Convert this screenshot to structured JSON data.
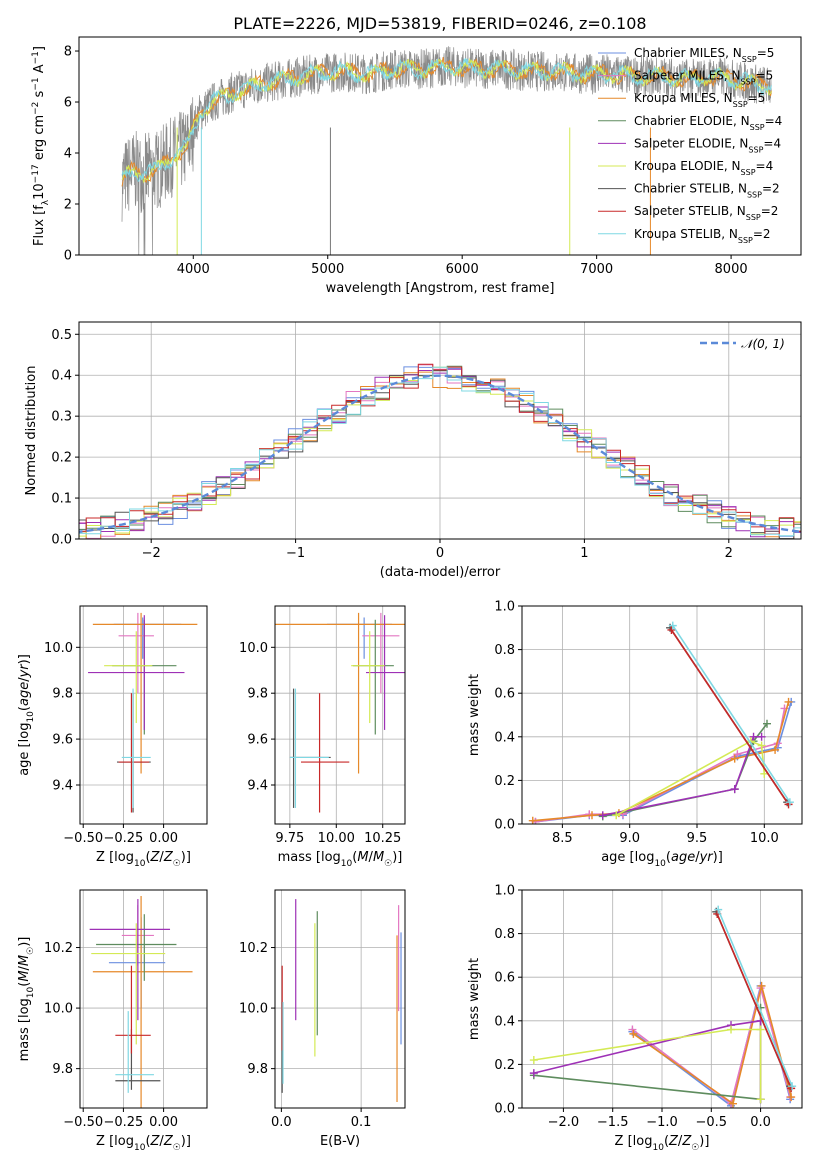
{
  "title": "PLATE=2226, MJD=53819, FIBERID=0246, z=0.108",
  "colors": [
    "#6b8fe0",
    "#e377c2",
    "#e6892a",
    "#5e8c5e",
    "#9e31b6",
    "#d4ea55",
    "#555555",
    "#c82828",
    "#7fd8e3"
  ],
  "chart_data": [
    {
      "id": "spectrum",
      "type": "line",
      "xlabel": "wavelength [Angstrom, rest frame]",
      "ylabel": "Flux [f_λ10^-17 erg cm^-2 s^-1 A^-1]",
      "xlim": [
        3150,
        8520
      ],
      "ylim": [
        0,
        8.55
      ],
      "xticks": [
        4000,
        5000,
        6000,
        7000,
        8000
      ],
      "yticks": [
        0,
        2,
        4,
        6,
        8
      ],
      "series": [
        {
          "name": "Chabrier MILES, N_SSP=5"
        },
        {
          "name": "Salpeter MILES, N_SSP=5"
        },
        {
          "name": "Kroupa MILES, N_SSP=5"
        },
        {
          "name": "Chabrier ELODIE, N_SSP=4"
        },
        {
          "name": "Salpeter ELODIE, N_SSP=4"
        },
        {
          "name": "Kroupa ELODIE, N_SSP=4"
        },
        {
          "name": "Chabrier STELIB, N_SSP=2"
        },
        {
          "name": "Salpeter STELIB, N_SSP=2"
        },
        {
          "name": "Kroupa STELIB, N_SSP=2"
        }
      ],
      "model_continuum": {
        "x": [
          3470,
          3550,
          3650,
          3750,
          3850,
          3950,
          4050,
          4150,
          4300,
          4500,
          4700,
          4900,
          5100,
          5300,
          5500,
          5700,
          5900,
          6100,
          6300,
          6500,
          6700,
          6900,
          7100,
          7300,
          7500,
          7700,
          7900,
          8100,
          8300
        ],
        "y": [
          2.9,
          3.3,
          3.2,
          3.4,
          3.9,
          4.2,
          5.6,
          6.0,
          6.4,
          6.7,
          6.9,
          7.1,
          7.2,
          7.1,
          7.3,
          7.3,
          7.4,
          7.3,
          7.3,
          7.2,
          7.2,
          7.1,
          7.1,
          7.0,
          7.0,
          6.9,
          7.0,
          6.8,
          6.6
        ]
      }
    },
    {
      "id": "residuals",
      "type": "histogram",
      "xlabel": "(data-model)/error",
      "ylabel": "Normed distribution",
      "xlim": [
        -2.5,
        2.5
      ],
      "ylim": [
        0,
        0.53
      ],
      "xticks": [
        -2,
        -1,
        0,
        1,
        2
      ],
      "yticks": [
        0.0,
        0.1,
        0.2,
        0.3,
        0.4,
        0.5
      ],
      "bin_width": 0.1,
      "reference": {
        "name": "𝒩(0, 1)",
        "type": "gaussian",
        "mean": 0,
        "sigma": 1
      }
    },
    {
      "id": "age-vs-Z",
      "type": "errorbar",
      "xlabel": "Z [log10(Z/Z☉)]",
      "ylabel": "age [log10(age/yr)]",
      "xlim": [
        -0.52,
        0.27
      ],
      "ylim": [
        9.23,
        10.18
      ],
      "xticks": [
        -0.5,
        -0.25,
        0.0
      ],
      "xtick_labels": [
        "−0.50",
        "−0.25",
        "0.00"
      ],
      "yticks": [
        9.4,
        9.6,
        9.8,
        10.0
      ],
      "points": [
        {
          "x": -0.13,
          "xerr": [
            0.18,
            0.24
          ],
          "y": 10.1,
          "yerr": [
            0.15,
            0.03
          ]
        },
        {
          "x": -0.16,
          "xerr": [
            0.12,
            0.1
          ],
          "y": 10.05,
          "yerr": [
            0.25,
            0.1
          ]
        },
        {
          "x": -0.14,
          "xerr": [
            0.3,
            0.35
          ],
          "y": 10.1,
          "yerr": [
            0.65,
            0.05
          ]
        },
        {
          "x": -0.12,
          "xerr": [
            0.2,
            0.2
          ],
          "y": 9.92,
          "yerr": [
            0.3,
            0.2
          ]
        },
        {
          "x": -0.12,
          "xerr": [
            0.35,
            0.25
          ],
          "y": 9.89,
          "yerr": [
            0.25,
            0.25
          ]
        },
        {
          "x": -0.17,
          "xerr": [
            0.2,
            0.1
          ],
          "y": 9.92,
          "yerr": [
            0.25,
            0.15
          ]
        },
        {
          "x": -0.19,
          "xerr": [
            0.1,
            0.11
          ],
          "y": 9.5,
          "yerr": [
            0.22,
            0.3
          ]
        },
        {
          "x": -0.2,
          "xerr": [
            0.08,
            0.11
          ],
          "y": 9.5,
          "yerr": [
            0.22,
            0.3
          ]
        },
        {
          "x": -0.19,
          "xerr": [
            0.07,
            0.11
          ],
          "y": 9.52,
          "yerr": [
            0.22,
            0.3
          ]
        }
      ]
    },
    {
      "id": "age-vs-mass",
      "type": "errorbar",
      "xlabel": "mass [log10(M/M☉)]",
      "ylabel": "",
      "xlim": [
        9.67,
        10.37
      ],
      "ylim": [
        9.23,
        10.18
      ],
      "xticks": [
        9.75,
        10.0,
        10.25
      ],
      "xtick_labels": [
        "9.75",
        "10.00",
        "10.25"
      ],
      "yticks": [
        9.4,
        9.6,
        9.8,
        10.0
      ],
      "points": [
        {
          "x": 10.15,
          "xerr": [
            0.2,
            0.15
          ],
          "y": 10.1,
          "yerr": [
            0.15,
            0.03
          ]
        },
        {
          "x": 10.24,
          "xerr": [
            0.1,
            0.1
          ],
          "y": 10.05,
          "yerr": [
            0.25,
            0.1
          ]
        },
        {
          "x": 10.12,
          "xerr": [
            0.45,
            0.25
          ],
          "y": 10.1,
          "yerr": [
            0.65,
            0.05
          ]
        },
        {
          "x": 10.21,
          "xerr": [
            0.12,
            0.1
          ],
          "y": 9.92,
          "yerr": [
            0.3,
            0.2
          ]
        },
        {
          "x": 10.26,
          "xerr": [
            0.1,
            0.12
          ],
          "y": 9.89,
          "yerr": [
            0.25,
            0.25
          ]
        },
        {
          "x": 10.18,
          "xerr": [
            0.1,
            0.08
          ],
          "y": 9.92,
          "yerr": [
            0.25,
            0.15
          ]
        },
        {
          "x": 9.77,
          "xerr": [
            0.02,
            0.2
          ],
          "y": 9.52,
          "yerr": [
            0.22,
            0.3
          ]
        },
        {
          "x": 9.91,
          "xerr": [
            0.1,
            0.16
          ],
          "y": 9.5,
          "yerr": [
            0.22,
            0.3
          ]
        },
        {
          "x": 9.78,
          "xerr": [
            0.03,
            0.18
          ],
          "y": 9.52,
          "yerr": [
            0.22,
            0.3
          ]
        }
      ]
    },
    {
      "id": "weight-vs-age",
      "type": "line",
      "xlabel": "age [log10(age/yr)]",
      "ylabel": "mass weight",
      "xlim": [
        8.2,
        10.28
      ],
      "ylim": [
        0,
        1
      ],
      "xticks": [
        8.5,
        9.0,
        9.5,
        10.0
      ],
      "xtick_labels": [
        "8.5",
        "9.0",
        "9.5",
        "10.0"
      ],
      "yticks": [
        0.0,
        0.2,
        0.4,
        0.6,
        0.8,
        1.0
      ],
      "series": [
        {
          "x": [
            8.3,
            8.7,
            8.95,
            9.8,
            10.1,
            10.2
          ],
          "y": [
            0.01,
            0.04,
            0.04,
            0.31,
            0.35,
            0.56
          ]
        },
        {
          "x": [
            8.3,
            8.7,
            8.95,
            9.8,
            10.1,
            10.15
          ],
          "y": [
            0.01,
            0.045,
            0.045,
            0.32,
            0.37,
            0.53
          ]
        },
        {
          "x": [
            8.28,
            8.72,
            8.92,
            9.78,
            10.08,
            10.18
          ],
          "y": [
            0.015,
            0.04,
            0.05,
            0.3,
            0.34,
            0.56
          ]
        },
        {
          "x": [
            8.8,
            9.78,
            9.92,
            10.02
          ],
          "y": [
            0.035,
            0.16,
            0.38,
            0.46
          ]
        },
        {
          "x": [
            8.8,
            9.78,
            9.92,
            9.98
          ],
          "y": [
            0.04,
            0.16,
            0.4,
            0.4
          ]
        },
        {
          "x": [
            8.9,
            9.9,
            9.98,
            10.0
          ],
          "y": [
            0.04,
            0.38,
            0.36,
            0.23
          ]
        },
        {
          "x": [
            9.3,
            10.17
          ],
          "y": [
            0.9,
            0.1
          ]
        },
        {
          "x": [
            9.31,
            10.18
          ],
          "y": [
            0.89,
            0.09
          ]
        },
        {
          "x": [
            9.32,
            10.19
          ],
          "y": [
            0.91,
            0.1
          ]
        }
      ]
    },
    {
      "id": "mass-vs-Z",
      "type": "errorbar",
      "xlabel": "Z [log10(Z/Z☉)]",
      "ylabel": "mass [log10(M/M☉)]",
      "xlim": [
        -0.52,
        0.27
      ],
      "ylim": [
        9.67,
        10.39
      ],
      "xticks": [
        -0.5,
        -0.25,
        0.0
      ],
      "xtick_labels": [
        "−0.50",
        "−0.25",
        "0.00"
      ],
      "yticks": [
        9.8,
        10.0,
        10.2
      ],
      "points": [
        {
          "x": -0.14,
          "xerr": [
            0.2,
            0.15
          ],
          "y": 10.15,
          "yerr": [
            0.15,
            0.15
          ]
        },
        {
          "x": -0.16,
          "xerr": [
            0.1,
            0.1
          ],
          "y": 10.24,
          "yerr": [
            0.1,
            0.1
          ]
        },
        {
          "x": -0.14,
          "xerr": [
            0.3,
            0.32
          ],
          "y": 10.12,
          "yerr": [
            0.45,
            0.25
          ]
        },
        {
          "x": -0.12,
          "xerr": [
            0.3,
            0.2
          ],
          "y": 10.21,
          "yerr": [
            0.12,
            0.1
          ]
        },
        {
          "x": -0.16,
          "xerr": [
            0.3,
            0.2
          ],
          "y": 10.26,
          "yerr": [
            0.3,
            0.1
          ]
        },
        {
          "x": -0.17,
          "xerr": [
            0.28,
            0.18
          ],
          "y": 10.18,
          "yerr": [
            0.3,
            0.1
          ]
        },
        {
          "x": -0.2,
          "xerr": [
            0.1,
            0.18
          ],
          "y": 9.76,
          "yerr": [
            0.03,
            0.17
          ]
        },
        {
          "x": -0.2,
          "xerr": [
            0.1,
            0.12
          ],
          "y": 9.91,
          "yerr": [
            0.06,
            0.23
          ]
        },
        {
          "x": -0.22,
          "xerr": [
            0.08,
            0.16
          ],
          "y": 9.78,
          "yerr": [
            0.06,
            0.21
          ]
        }
      ]
    },
    {
      "id": "mass-vs-EBV",
      "type": "errorbar",
      "xlabel": "E(B-V)",
      "ylabel": "",
      "xlim": [
        -0.008,
        0.155
      ],
      "ylim": [
        9.67,
        10.39
      ],
      "xticks": [
        0.0,
        0.1
      ],
      "xtick_labels": [
        "0.0",
        "0.1"
      ],
      "yticks": [
        9.8,
        10.0,
        10.2
      ],
      "points": [
        {
          "x": 0.15,
          "y": 10.15,
          "yerr": [
            0.27,
            0.1
          ]
        },
        {
          "x": 0.147,
          "y": 10.24,
          "yerr": [
            0.25,
            0.1
          ]
        },
        {
          "x": 0.145,
          "y": 10.12,
          "yerr": [
            0.43,
            0.12
          ]
        },
        {
          "x": 0.045,
          "y": 10.21,
          "yerr": [
            0.3,
            0.11
          ]
        },
        {
          "x": 0.018,
          "y": 10.26,
          "yerr": [
            0.3,
            0.1
          ]
        },
        {
          "x": 0.042,
          "y": 10.18,
          "yerr": [
            0.34,
            0.1
          ]
        },
        {
          "x": 0.001,
          "y": 9.76,
          "yerr": [
            0.04,
            0.26
          ]
        },
        {
          "x": 0.001,
          "y": 10.0,
          "yerr": [
            0.14,
            0.14
          ]
        },
        {
          "x": 0.002,
          "y": 9.95,
          "yerr": [
            0.2,
            0.07
          ]
        }
      ]
    },
    {
      "id": "weight-vs-Z",
      "type": "line",
      "xlabel": "Z [log10(Z/Z☉)]",
      "ylabel": "mass weight",
      "xlim": [
        -2.42,
        0.42
      ],
      "ylim": [
        0,
        1
      ],
      "xticks": [
        -2.0,
        -1.5,
        -1.0,
        -0.5,
        0.0
      ],
      "xtick_labels": [
        "−2.0",
        "−1.5",
        "−1.0",
        "−0.5",
        "0.0"
      ],
      "yticks": [
        0.0,
        0.2,
        0.4,
        0.6,
        0.8,
        1.0
      ],
      "series": [
        {
          "x": [
            -1.3,
            -0.3,
            0.0,
            0.3
          ],
          "y": [
            0.35,
            0.01,
            0.56,
            0.04
          ]
        },
        {
          "x": [
            -1.3,
            -0.3,
            0.0,
            0.3
          ],
          "y": [
            0.36,
            0.02,
            0.55,
            0.05
          ]
        },
        {
          "x": [
            -1.29,
            -0.28,
            0.01,
            0.31
          ],
          "y": [
            0.34,
            0.02,
            0.56,
            0.05
          ]
        },
        {
          "x": [
            -2.3,
            0.0,
            0.0,
            0.0
          ],
          "y": [
            0.15,
            0.04,
            0.46,
            0.04
          ]
        },
        {
          "x": [
            -2.3,
            -0.3,
            0.0,
            0.0
          ],
          "y": [
            0.16,
            0.38,
            0.4,
            0.04
          ]
        },
        {
          "x": [
            -2.3,
            -0.3,
            0.0,
            0.0
          ],
          "y": [
            0.22,
            0.36,
            0.36,
            0.04
          ]
        },
        {
          "x": [
            -0.45,
            0.3
          ],
          "y": [
            0.9,
            0.1
          ]
        },
        {
          "x": [
            -0.44,
            0.31
          ],
          "y": [
            0.89,
            0.09
          ]
        },
        {
          "x": [
            -0.43,
            0.32
          ],
          "y": [
            0.91,
            0.1
          ]
        }
      ]
    }
  ]
}
